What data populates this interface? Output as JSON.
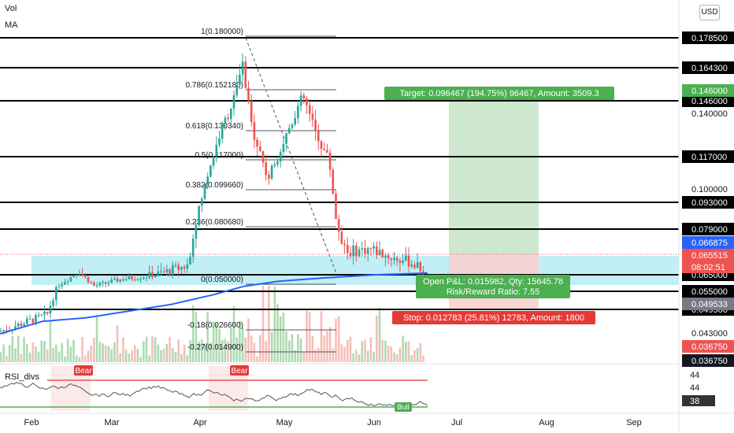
{
  "legend": {
    "vol": "Vol",
    "ma": "MA",
    "rsi_divs": "RSI_divs"
  },
  "currency_button": "USD",
  "colors": {
    "up": "#26a69a",
    "down": "#ef5350",
    "ma_line": "#2962ff",
    "level_line": "#000000",
    "target_zone": "#c8e6c9",
    "stop_zone": "#f8cfcf",
    "highlight_band": "#b2ebf2",
    "label_green": "#4caf50",
    "label_red": "#e53935",
    "rsi_line": "#555555"
  },
  "x_axis": {
    "labels": [
      "Feb",
      "Mar",
      "Apr",
      "May",
      "Jun",
      "Jul",
      "Aug",
      "Sep"
    ]
  },
  "levels": [
    {
      "label": "0.178500",
      "value": 0.1785
    },
    {
      "label": "0.164300",
      "value": 0.1643
    },
    {
      "label": "0.146000",
      "value": 0.146
    },
    {
      "label": "0.117000",
      "value": 0.117
    },
    {
      "label": "0.093000",
      "value": 0.093
    },
    {
      "label": "0.079000",
      "value": 0.079
    },
    {
      "label": "0.065000",
      "value": 0.065
    },
    {
      "label": "0.055000",
      "value": 0.055
    },
    {
      "label": "0.049500",
      "value": 0.0495
    }
  ],
  "price_axis_plain": [
    "0.140000",
    "0.100000",
    "0.043000",
    "0.036750"
  ],
  "price_axis_tags": [
    {
      "label": "0.146000",
      "kind": "green"
    },
    {
      "label": "0.066875",
      "kind": "blue"
    },
    {
      "label": "0.065515",
      "kind": "red"
    },
    {
      "label": "08:02:51",
      "kind": "red"
    },
    {
      "label": "0.049533",
      "kind": "grey"
    },
    {
      "label": "0.036750",
      "kind": "red"
    },
    {
      "label": "0.036750",
      "kind": "dark"
    }
  ],
  "fib_labels": [
    "1(0.180000)",
    "0.786(0.152180)",
    "0.618(0.130340)",
    "0.5(0.117000)",
    "0.382(0.099660)",
    "0.236(0.080680)",
    "0(0.050000)",
    "-0.18(0.026600)",
    "-0.27(0.014900)"
  ],
  "position": {
    "target_label": "Target: 0.096467 (194.75%) 96467, Amount: 3509.3",
    "pnl_label": "Open P&L: 0.015982, Qty: 15645.78",
    "ratio_label": "Risk/Reward Ratio: 7.55",
    "stop_label": "Stop: 0.012783 (25.81%) 12783, Amount: 1800"
  },
  "rsi": {
    "axis_labels": [
      "44",
      "44",
      "38"
    ],
    "signals": [
      "Bear",
      "Bear",
      "Bull"
    ]
  },
  "chart_data": {
    "type": "candlestick",
    "price_range": [
      0.03,
      0.19
    ],
    "ma_points": [
      [
        0,
        0.042
      ],
      [
        0.1,
        0.046
      ],
      [
        0.2,
        0.047
      ],
      [
        0.3,
        0.049
      ],
      [
        0.4,
        0.051
      ],
      [
        0.5,
        0.054
      ],
      [
        0.57,
        0.058
      ],
      [
        0.65,
        0.061
      ],
      [
        0.75,
        0.063
      ],
      [
        0.88,
        0.065
      ],
      [
        1,
        0.0655
      ]
    ]
  }
}
